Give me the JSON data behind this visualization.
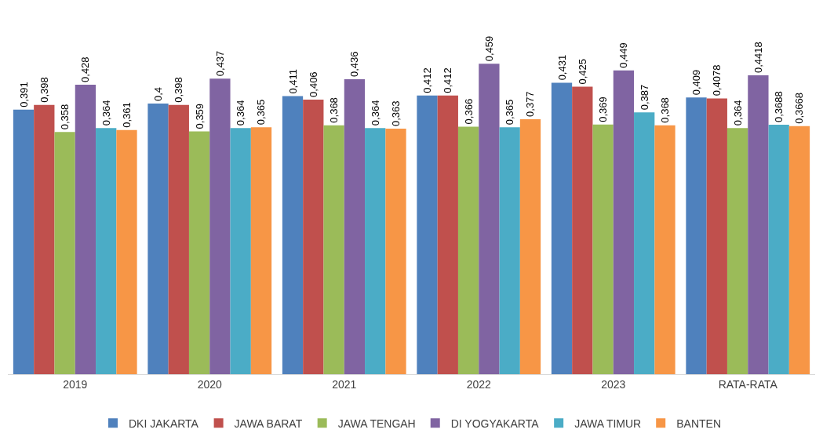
{
  "chart_data": {
    "type": "bar",
    "categories": [
      "2019",
      "2020",
      "2021",
      "2022",
      "2023",
      "RATA-RATA"
    ],
    "series": [
      {
        "name": "DKI JAKARTA",
        "color": "#4f81bd",
        "values": [
          0.391,
          0.4,
          0.411,
          0.412,
          0.431,
          0.409
        ],
        "value_labels": [
          "0,391",
          "0,4",
          "0,411",
          "0,412",
          "0,431",
          "0,409"
        ]
      },
      {
        "name": "JAWA BARAT",
        "color": "#c0504d",
        "values": [
          0.398,
          0.398,
          0.406,
          0.412,
          0.425,
          0.4078
        ],
        "value_labels": [
          "0,398",
          "0,398",
          "0,406",
          "0,412",
          "0,425",
          "0,4078"
        ]
      },
      {
        "name": "JAWA TENGAH",
        "color": "#9bbb59",
        "values": [
          0.358,
          0.359,
          0.368,
          0.366,
          0.369,
          0.364
        ],
        "value_labels": [
          "0,358",
          "0,359",
          "0,368",
          "0,366",
          "0,369",
          "0,364"
        ]
      },
      {
        "name": "DI YOGYAKARTA",
        "color": "#8064a2",
        "values": [
          0.428,
          0.437,
          0.436,
          0.459,
          0.449,
          0.4418
        ],
        "value_labels": [
          "0,428",
          "0,437",
          "0,436",
          "0,459",
          "0,449",
          "0,4418"
        ]
      },
      {
        "name": "JAWA TIMUR",
        "color": "#4bacc6",
        "values": [
          0.364,
          0.364,
          0.364,
          0.365,
          0.387,
          0.3688
        ],
        "value_labels": [
          "0,364",
          "0,364",
          "0,364",
          "0,365",
          "0,387",
          "0,3688"
        ]
      },
      {
        "name": "BANTEN",
        "color": "#f79646",
        "values": [
          0.361,
          0.365,
          0.363,
          0.377,
          0.368,
          0.3668
        ],
        "value_labels": [
          "0,361",
          "0,365",
          "0,363",
          "0,377",
          "0,368",
          "0,3668"
        ]
      }
    ],
    "legend": "bottom"
  }
}
